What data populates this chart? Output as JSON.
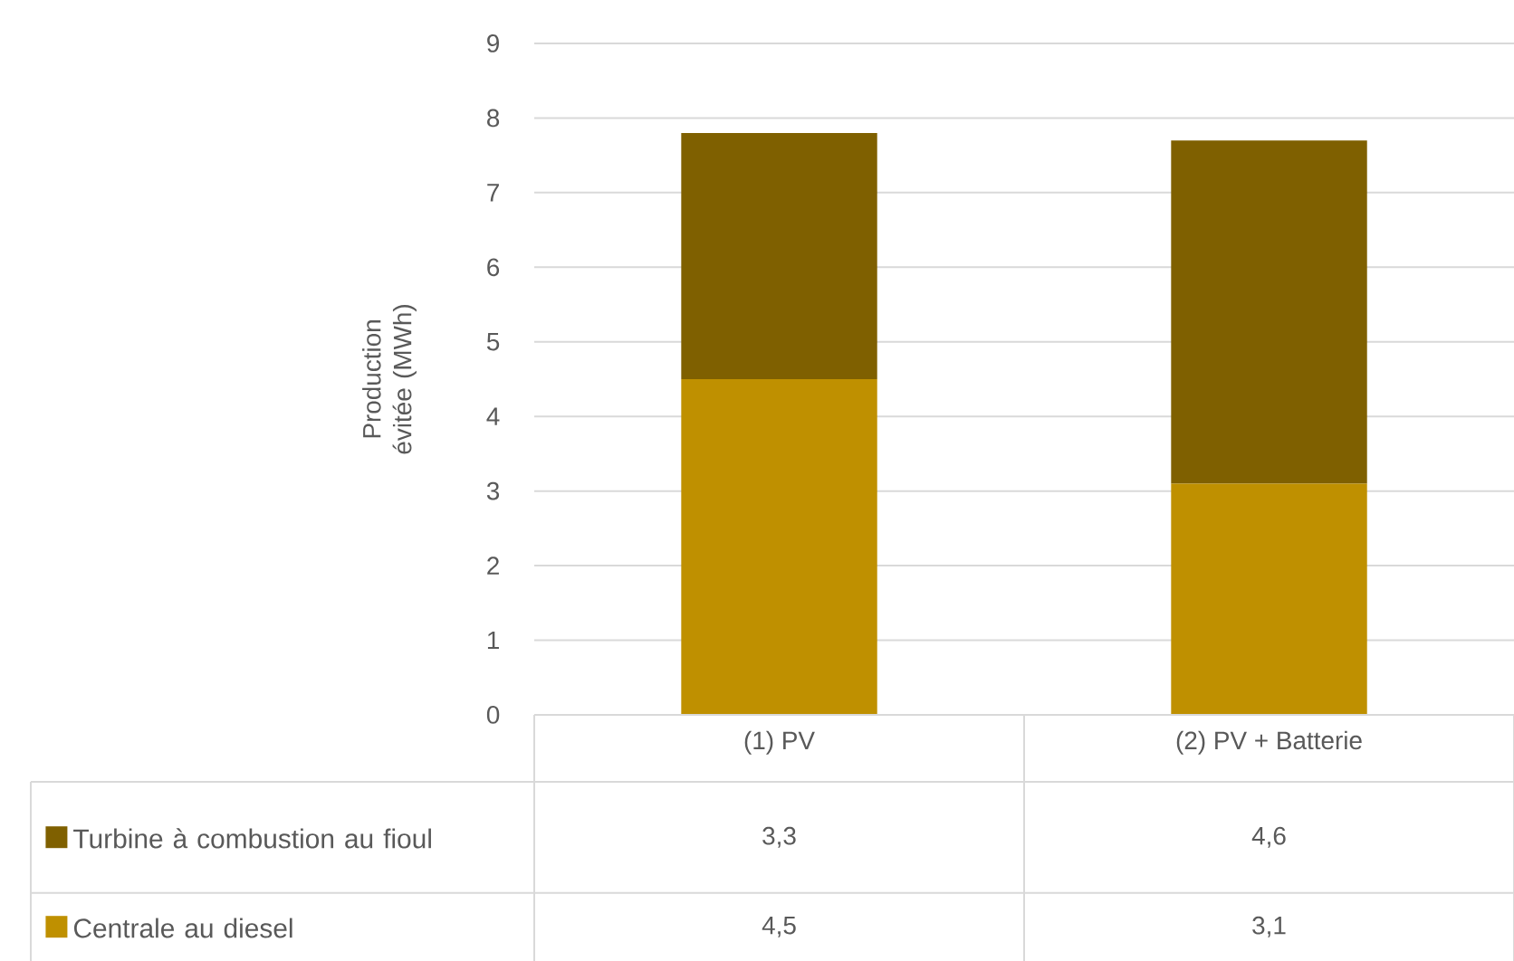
{
  "chart_data": {
    "type": "bar",
    "stacked": true,
    "ylabel": "Production évitée (MWh)",
    "categories": [
      "(1) PV",
      "(2) PV + Batterie"
    ],
    "series": [
      {
        "name": "Centrale au diesel",
        "color": "#bf9000",
        "values": [
          4.5,
          3.1
        ],
        "value_labels": [
          "4,5",
          "3,1"
        ]
      },
      {
        "name": "Turbine à combustion au fioul",
        "color": "#7f6000",
        "values": [
          3.3,
          4.6
        ],
        "value_labels": [
          "3,3",
          "4,6"
        ]
      }
    ],
    "ylim": [
      0,
      9
    ],
    "yticks": [
      0,
      1,
      2,
      3,
      4,
      5,
      6,
      7,
      8,
      9
    ],
    "grid": "y",
    "legend": "bottom"
  }
}
